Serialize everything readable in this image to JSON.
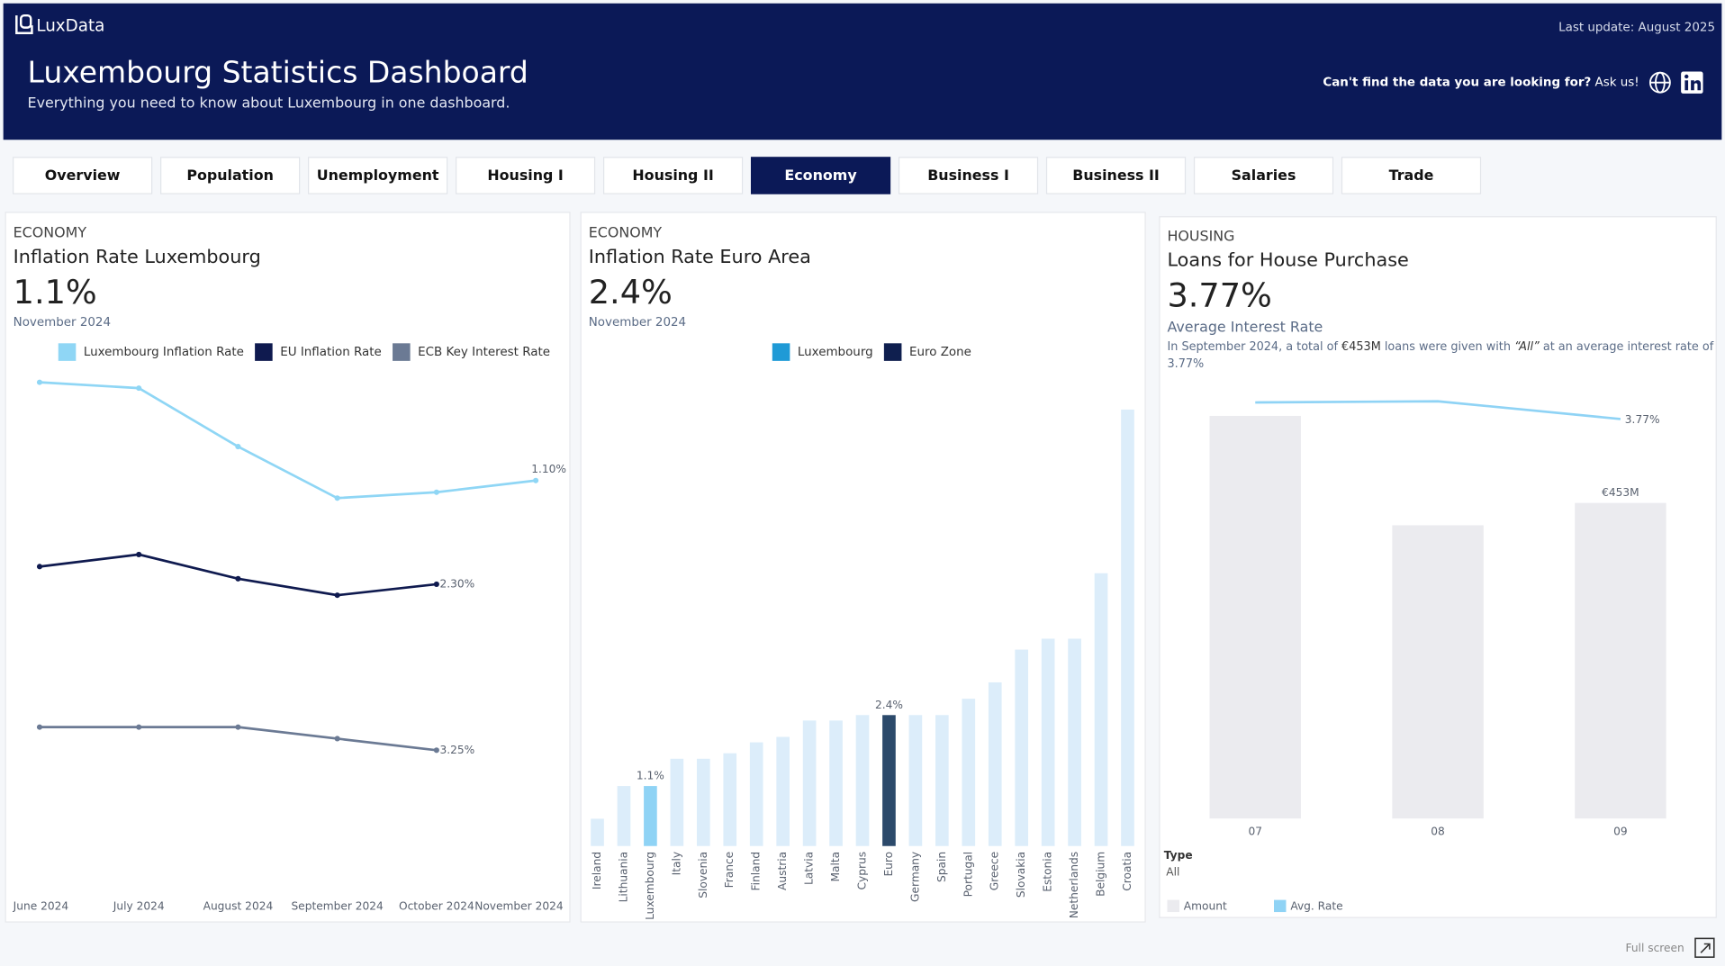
{
  "header": {
    "logo": "LuxData",
    "last_update": "Last update: August 2025",
    "title": "Luxembourg Statistics Dashboard",
    "subtitle": "Everything you need to know about Luxembourg in one dashboard.",
    "help_text": "Can't find the data you are looking for?",
    "help_link": " Ask us!"
  },
  "tabs": {
    "items": [
      "Overview",
      "Population",
      "Unemployment",
      "Housing I",
      "Housing II",
      "Economy",
      "Business I",
      "Business II",
      "Salaries",
      "Trade"
    ],
    "active": 5
  },
  "panels": [
    {
      "kicker": "ECONOMY",
      "title": "Inflation Rate Luxembourg",
      "big_value": "1.1%",
      "date": "November 2024"
    },
    {
      "kicker": "ECONOMY",
      "title": "Inflation Rate Euro Area",
      "big_value": "2.4%",
      "date": "November 2024"
    },
    {
      "kicker": "HOUSING",
      "title": "Loans for House Purchase",
      "big_value": "3.77%",
      "subtitle": "Average Interest Rate",
      "description": [
        "In September 2024, a total of ",
        " €453M ",
        " loans were given with ",
        "“All”",
        " at an average interest rate of",
        "3.77%"
      ],
      "filter_label": "Type",
      "filter_value": "All"
    }
  ],
  "chart_data": [
    {
      "type": "line",
      "categories": [
        "June 2024",
        "July 2024",
        "August 2024",
        "September 2024",
        "October 2024",
        "November 2024"
      ],
      "series": [
        {
          "name": "Luxembourg Inflation Rate",
          "color": "#8fd6f5",
          "ylim": [
            -2.41,
            2.01
          ],
          "values": [
            1.94,
            1.89,
            1.39,
            0.95,
            1.0,
            1.1
          ],
          "value_labels": [
            null,
            null,
            null,
            null,
            null,
            "1.10%"
          ]
        },
        {
          "name": "EU Inflation Rate",
          "color": "#0f1a4f",
          "ylim": [
            -3.28,
            6.12
          ],
          "values": [
            2.62,
            2.84,
            2.4,
            2.1,
            2.3,
            null
          ],
          "value_labels": [
            null,
            null,
            null,
            null,
            "2.30%",
            null
          ]
        },
        {
          "name": "ECB Key Interest Rate",
          "color": "#6b7a94",
          "ylim": [
            0.2,
            11.39
          ],
          "values": [
            3.75,
            3.75,
            3.75,
            3.5,
            3.25,
            null
          ],
          "value_labels": [
            null,
            null,
            null,
            null,
            "3.25%",
            null
          ]
        }
      ]
    },
    {
      "type": "bar",
      "categories": [
        "Ireland",
        "Lithuania",
        "Luxembourg",
        "Italy",
        "Slovenia",
        "France",
        "Finland",
        "Austria",
        "Latvia",
        "Malta",
        "Cyprus",
        "Euro",
        "Germany",
        "Spain",
        "Portugal",
        "Greece",
        "Slovakia",
        "Estonia",
        "Netherlands",
        "Belgium",
        "Croatia"
      ],
      "values": [
        0.5,
        1.1,
        1.1,
        1.6,
        1.6,
        1.7,
        1.9,
        2.0,
        2.3,
        2.3,
        2.4,
        2.4,
        2.4,
        2.4,
        2.7,
        3.0,
        3.6,
        3.8,
        3.8,
        5.0,
        8.0
      ],
      "value_labels": [
        null,
        null,
        "1.1%",
        null,
        null,
        null,
        null,
        null,
        null,
        null,
        null,
        "2.4%",
        null,
        null,
        null,
        null,
        null,
        null,
        null,
        null,
        null
      ],
      "color": "#dcedfa",
      "highlight": {
        "2": "#8fd3f5",
        "11": "#2c4a6b"
      },
      "legend": [
        {
          "name": "Luxembourg",
          "color": "#1f9ad6"
        },
        {
          "name": "Euro Zone",
          "color": "#0f1f4f"
        }
      ],
      "ylim": [
        0,
        8.65
      ]
    },
    {
      "type": "combo",
      "categories": [
        "07",
        "08",
        "09"
      ],
      "series": [
        {
          "name": "Amount",
          "kind": "bar",
          "color": "#ebebef",
          "values": [
            578,
            421,
            453
          ],
          "value_labels": [
            null,
            null,
            "€453M"
          ]
        },
        {
          "name": "Avg. Rate",
          "kind": "line",
          "axis": "y2",
          "color": "#8fd3f5",
          "values": [
            3.91,
            3.92,
            3.77
          ],
          "value_labels": [
            null,
            null,
            "3.77%"
          ]
        }
      ],
      "ylim": [
        0,
        638
      ],
      "y2lim": [
        0.39,
        4.15
      ]
    }
  ],
  "footer": {
    "fullscreen": "Full screen"
  }
}
